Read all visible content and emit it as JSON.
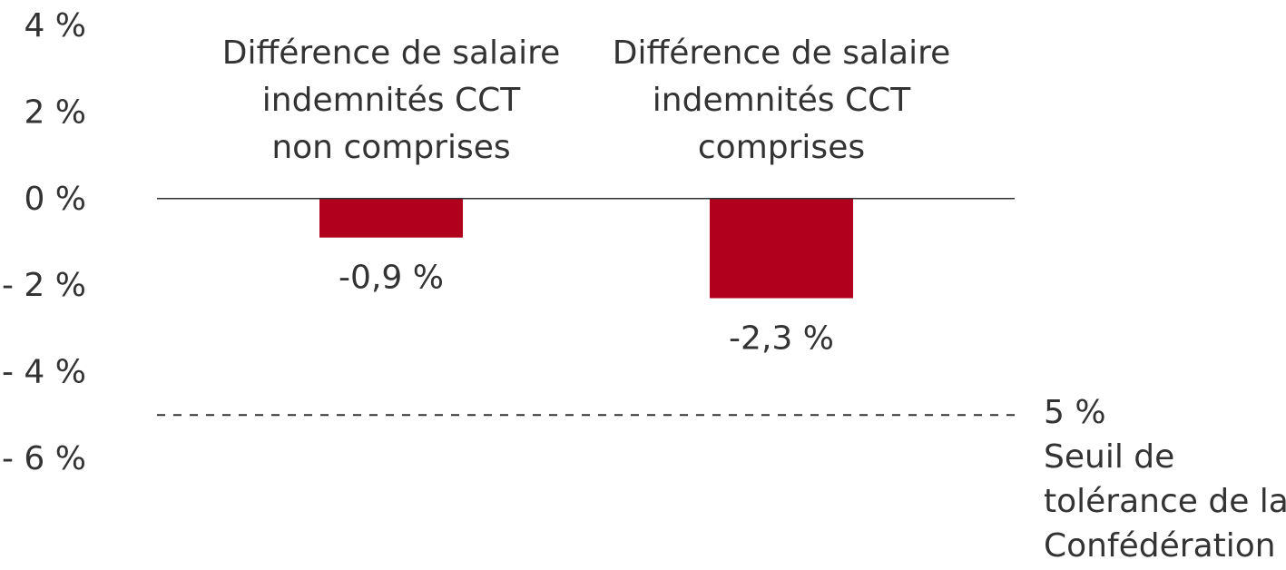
{
  "chart_data": {
    "type": "bar",
    "categories": [
      [
        "Différence de salaire",
        "indemnités CCT",
        "non comprises"
      ],
      [
        "Différence de salaire",
        "indemnités CCT",
        "comprises"
      ]
    ],
    "values": [
      -0.9,
      -2.3
    ],
    "value_labels": [
      "-0,9 %",
      "-2,3 %"
    ],
    "y_ticks": [
      {
        "value": 4,
        "label": "4 %"
      },
      {
        "value": 2,
        "label": "2 %"
      },
      {
        "value": 0,
        "label": "0 %"
      },
      {
        "value": -2,
        "label": "- 2 %"
      },
      {
        "value": -4,
        "label": "- 4 %"
      },
      {
        "value": -6,
        "label": "- 6 %"
      }
    ],
    "ylim": [
      -6,
      4
    ],
    "bar_color": "#b0001e",
    "threshold": {
      "value": -5,
      "label_lines": [
        "5 %",
        "Seuil de",
        "tolérance de la",
        "Confédération"
      ]
    },
    "grid": false,
    "legend": "none"
  }
}
